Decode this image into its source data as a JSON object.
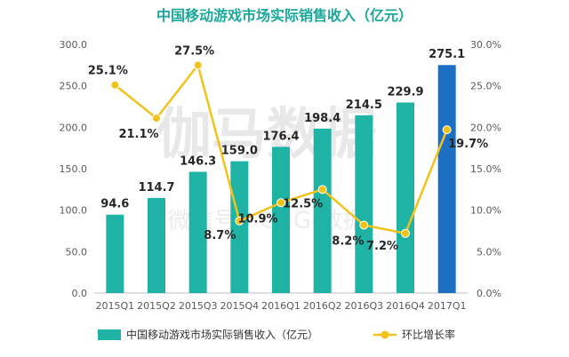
{
  "colors": {
    "bar": "#1fb3a5",
    "bar_highlight": "#1d6fc4",
    "line": "#f3c21a",
    "title": "#19a89a",
    "axis_text": "#595959",
    "grid": "#d9d9d9"
  },
  "watermark": {
    "text": "伽马数据",
    "subtext": "微信号：CNG-数据"
  },
  "chart_data": {
    "type": "bar",
    "title": "中国移动游戏市场实际销售收入（亿元）",
    "categories": [
      "2015Q1",
      "2015Q2",
      "2015Q3",
      "2015Q4",
      "2016Q1",
      "2016Q2",
      "2016Q3",
      "2016Q4",
      "2017Q1"
    ],
    "series": [
      {
        "name": "中国移动游戏市场实际销售收入（亿元）",
        "type": "bar",
        "axis": "left",
        "values": [
          94.6,
          114.7,
          146.3,
          159.0,
          176.4,
          198.4,
          214.5,
          229.9,
          275.1
        ],
        "labels": [
          "94.6",
          "114.7",
          "146.3",
          "159.0",
          "176.4",
          "198.4",
          "214.5",
          "229.9",
          "275.1"
        ]
      },
      {
        "name": "环比增长率",
        "type": "line",
        "axis": "right",
        "values": [
          25.1,
          21.1,
          27.5,
          8.7,
          10.9,
          12.5,
          8.2,
          7.2,
          19.7
        ],
        "labels": [
          "25.1%",
          "21.1%",
          "27.5%",
          "8.7%",
          "10.9%",
          "12.5%",
          "8.2%",
          "7.2%",
          "19.7%"
        ]
      }
    ],
    "y_left": {
      "min": 0,
      "max": 300,
      "ticks": [
        "0.0",
        "50.0",
        "100.0",
        "150.0",
        "200.0",
        "250.0",
        "300.0"
      ]
    },
    "y_right": {
      "min": 0,
      "max": 30,
      "ticks": [
        "0.0%",
        "5.0%",
        "10.0%",
        "15.0%",
        "20.0%",
        "25.0%",
        "30.0%"
      ]
    },
    "grid": false,
    "legend_position": "bottom"
  }
}
